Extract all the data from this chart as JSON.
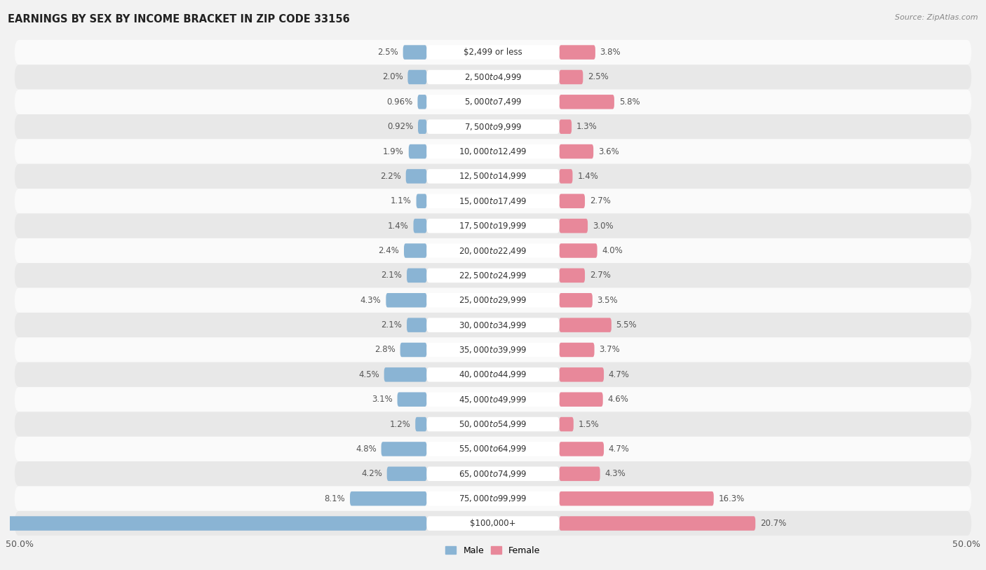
{
  "title": "EARNINGS BY SEX BY INCOME BRACKET IN ZIP CODE 33156",
  "source": "Source: ZipAtlas.com",
  "categories": [
    "$2,499 or less",
    "$2,500 to $4,999",
    "$5,000 to $7,499",
    "$7,500 to $9,999",
    "$10,000 to $12,499",
    "$12,500 to $14,999",
    "$15,000 to $17,499",
    "$17,500 to $19,999",
    "$20,000 to $22,499",
    "$22,500 to $24,999",
    "$25,000 to $29,999",
    "$30,000 to $34,999",
    "$35,000 to $39,999",
    "$40,000 to $44,999",
    "$45,000 to $49,999",
    "$50,000 to $54,999",
    "$55,000 to $64,999",
    "$65,000 to $74,999",
    "$75,000 to $99,999",
    "$100,000+"
  ],
  "male_values": [
    2.5,
    2.0,
    0.96,
    0.92,
    1.9,
    2.2,
    1.1,
    1.4,
    2.4,
    2.1,
    4.3,
    2.1,
    2.8,
    4.5,
    3.1,
    1.2,
    4.8,
    4.2,
    8.1,
    47.6
  ],
  "female_values": [
    3.8,
    2.5,
    5.8,
    1.3,
    3.6,
    1.4,
    2.7,
    3.0,
    4.0,
    2.7,
    3.5,
    5.5,
    3.7,
    4.7,
    4.6,
    1.5,
    4.7,
    4.3,
    16.3,
    20.7
  ],
  "male_color": "#8ab4d4",
  "female_color": "#e8889a",
  "male_label": "Male",
  "female_label": "Female",
  "max_val": 50.0,
  "bar_height": 0.58,
  "bg_color": "#f2f2f2",
  "row_light": "#fafafa",
  "row_dark": "#e8e8e8",
  "title_fontsize": 10.5,
  "source_fontsize": 8,
  "cat_fontsize": 8.5,
  "val_fontsize": 8.5,
  "tick_fontsize": 9
}
